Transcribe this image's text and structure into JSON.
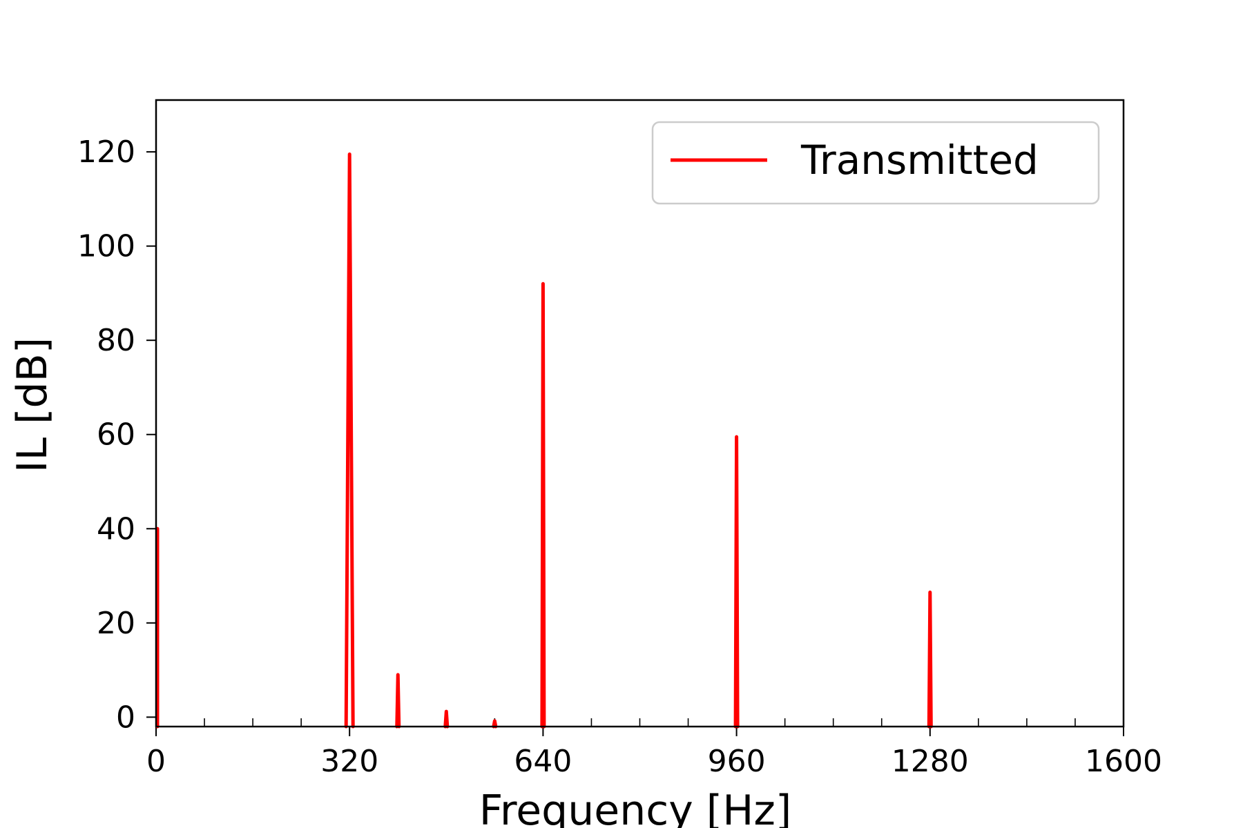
{
  "chart_data": {
    "type": "line",
    "xlabel": "Frequency [Hz]",
    "ylabel": "IL [dB]",
    "xlim": [
      0,
      1600
    ],
    "ylim": [
      -2,
      131
    ],
    "x_major_ticks": [
      0,
      320,
      640,
      960,
      1280,
      1600
    ],
    "x_major_tick_labels": [
      "0",
      "320",
      "640",
      "960",
      "1280",
      "1600"
    ],
    "x_minor_ticks": [
      80,
      160,
      240,
      400,
      480,
      560,
      720,
      800,
      880,
      1040,
      1120,
      1200,
      1360,
      1440,
      1520
    ],
    "y_ticks": [
      0,
      20,
      40,
      60,
      80,
      100,
      120
    ],
    "y_tick_labels": [
      "0",
      "20",
      "40",
      "60",
      "80",
      "100",
      "120"
    ],
    "grid": false,
    "legend_position": "top-right",
    "series": [
      {
        "name": "Transmitted",
        "color": "#ff0000",
        "peaks": [
          {
            "x": 0,
            "y": 40
          },
          {
            "x": 320,
            "y": 119.5
          },
          {
            "x": 400,
            "y": 9
          },
          {
            "x": 480,
            "y": 1.2
          },
          {
            "x": 560,
            "y": -0.8
          },
          {
            "x": 640,
            "y": 92
          },
          {
            "x": 960,
            "y": 59.5
          },
          {
            "x": 1280,
            "y": 26.5
          }
        ]
      }
    ]
  }
}
